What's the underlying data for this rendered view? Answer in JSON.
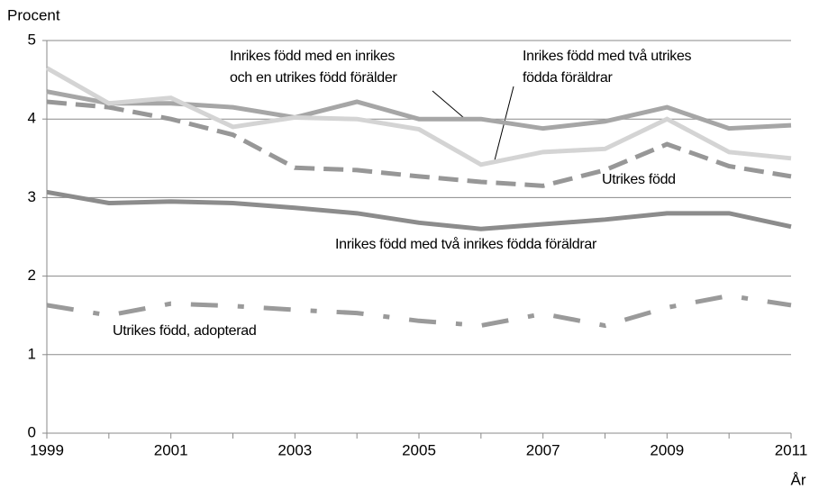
{
  "chart_data": {
    "type": "line",
    "y_label": "Procent",
    "x_label": "År",
    "x": [
      1999,
      2000,
      2001,
      2002,
      2003,
      2004,
      2005,
      2006,
      2007,
      2008,
      2009,
      2010,
      2011
    ],
    "xlim": [
      1999,
      2011
    ],
    "xticks": [
      1999,
      2001,
      2003,
      2005,
      2007,
      2009,
      2011
    ],
    "ylim": [
      0,
      5
    ],
    "yticks": [
      0,
      1,
      2,
      3,
      4,
      5
    ],
    "grid": true,
    "series": [
      {
        "name": [
          "Inrikes född med en inrikes",
          "och en utrikes född förälder"
        ],
        "color": "#a6a6a6",
        "dash": "solid",
        "values": [
          4.35,
          4.2,
          4.2,
          4.15,
          4.02,
          4.22,
          4.0,
          4.0,
          3.88,
          3.97,
          4.15,
          3.88,
          3.92
        ]
      },
      {
        "name": [
          "Inrikes född med två utrikes",
          "födda föräldrar"
        ],
        "color": "#d4d4d4",
        "dash": "solid",
        "values": [
          4.65,
          4.2,
          4.27,
          3.9,
          4.02,
          4.0,
          3.87,
          3.42,
          3.58,
          3.62,
          4.0,
          3.58,
          3.5
        ]
      },
      {
        "name": [
          "Utrikes född"
        ],
        "color": "#979797",
        "dash": "dashed",
        "values": [
          4.22,
          4.15,
          4.0,
          3.8,
          3.38,
          3.35,
          3.27,
          3.2,
          3.15,
          3.35,
          3.68,
          3.4,
          3.27
        ]
      },
      {
        "name": [
          "Inrikes född med två inrikes födda föräldrar"
        ],
        "color": "#8c8c8c",
        "dash": "solid",
        "values": [
          3.07,
          2.93,
          2.95,
          2.93,
          2.87,
          2.8,
          2.68,
          2.6,
          2.66,
          2.72,
          2.8,
          2.8,
          2.63
        ]
      },
      {
        "name": [
          "Utrikes född, adopterad"
        ],
        "color": "#9a9a9a",
        "dash": "dashdot",
        "values": [
          1.63,
          1.5,
          1.65,
          1.62,
          1.57,
          1.53,
          1.43,
          1.37,
          1.52,
          1.37,
          1.6,
          1.75,
          1.63
        ]
      }
    ]
  }
}
